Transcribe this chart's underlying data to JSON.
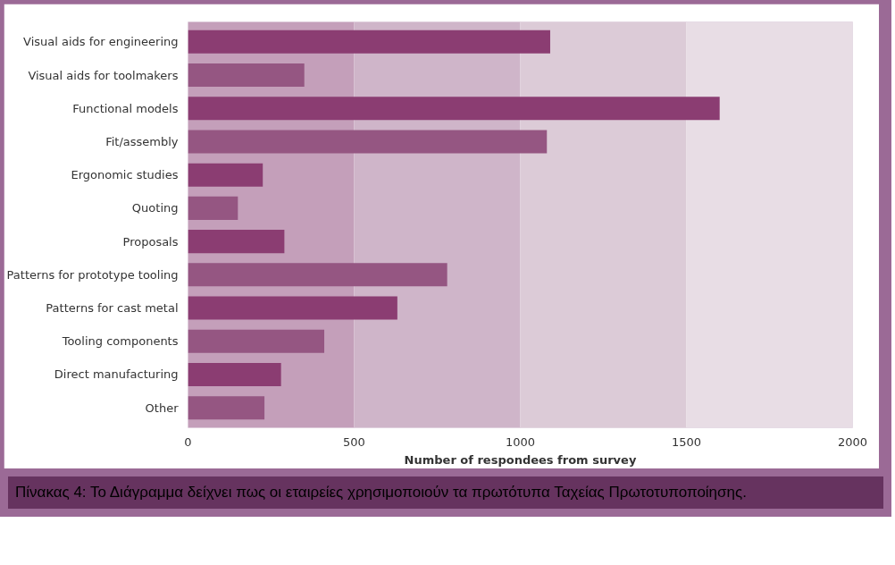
{
  "chart_data": {
    "type": "bar",
    "orientation": "horizontal",
    "categories": [
      "Visual aids for engineering",
      "Visual aids for toolmakers",
      "Functional models",
      "Fit/assembly",
      "Ergonomic studies",
      "Quoting",
      "Proposals",
      "Patterns for prototype tooling",
      "Patterns for cast metal",
      "Tooling components",
      "Direct manufacturing",
      "Other"
    ],
    "values": [
      1090,
      350,
      1600,
      1080,
      225,
      150,
      290,
      780,
      630,
      410,
      280,
      230
    ],
    "colors": [
      "#8b3d72",
      "#955682",
      "#8b3d72",
      "#955682",
      "#8b3d72",
      "#955682",
      "#8b3d72",
      "#955682",
      "#8b3d72",
      "#955682",
      "#8b3d72",
      "#955682"
    ],
    "xlabel": "Number of respondees from survey",
    "xlim": [
      0,
      2000
    ],
    "xticks": [
      0,
      500,
      1000,
      1500,
      2000
    ],
    "bands": [
      {
        "axis": "x",
        "from": 0,
        "to": 500,
        "color": "#c49fba"
      },
      {
        "axis": "x",
        "from": 500,
        "to": 1000,
        "color": "#cfb5c9"
      },
      {
        "axis": "x",
        "from": 1000,
        "to": 1500,
        "color": "#dccbd7"
      },
      {
        "axis": "x",
        "from": 1500,
        "to": 2000,
        "color": "#e8dde5"
      }
    ],
    "grid": false,
    "annotations": [
      "Πίνακας 4: Το Διάγραμμα δείχνει πως οι εταιρείες χρησιμοποιούν τα πρωτότυπα Ταχείας Πρωτοτυποποίησης."
    ]
  }
}
